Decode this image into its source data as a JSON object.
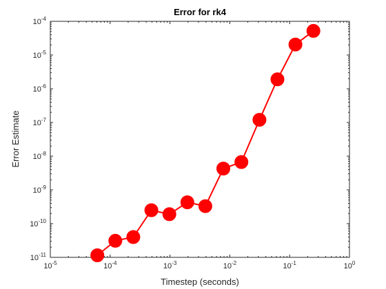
{
  "chart_data": {
    "type": "line",
    "title": "Error for rk4",
    "xlabel": "Timestep (seconds)",
    "ylabel": "Error Estimate",
    "x_scale": "log",
    "y_scale": "log",
    "xlim": [
      1e-05,
      1
    ],
    "ylim": [
      1e-11,
      0.0001
    ],
    "grid": false,
    "x_ticks": [
      {
        "value": 1e-05,
        "base": "10",
        "exp": "-5"
      },
      {
        "value": 0.0001,
        "base": "10",
        "exp": "-4"
      },
      {
        "value": 0.001,
        "base": "10",
        "exp": "-3"
      },
      {
        "value": 0.01,
        "base": "10",
        "exp": "-2"
      },
      {
        "value": 0.1,
        "base": "10",
        "exp": "-1"
      },
      {
        "value": 1,
        "base": "10",
        "exp": "0"
      }
    ],
    "y_ticks": [
      {
        "value": 1e-11,
        "base": "10",
        "exp": "-11"
      },
      {
        "value": 1e-10,
        "base": "10",
        "exp": "-10"
      },
      {
        "value": 1e-09,
        "base": "10",
        "exp": "-9"
      },
      {
        "value": 1e-08,
        "base": "10",
        "exp": "-8"
      },
      {
        "value": 1e-07,
        "base": "10",
        "exp": "-7"
      },
      {
        "value": 1e-06,
        "base": "10",
        "exp": "-6"
      },
      {
        "value": 1e-05,
        "base": "10",
        "exp": "-5"
      },
      {
        "value": 0.0001,
        "base": "10",
        "exp": "-4"
      }
    ],
    "series": [
      {
        "color": "#ff0000",
        "marker": "filled-circle",
        "x": [
          6.1e-05,
          0.000122,
          0.000244,
          0.000488,
          0.000977,
          0.00195,
          0.0039,
          0.0078,
          0.0156,
          0.03125,
          0.0625,
          0.125,
          0.25
        ],
        "y": [
          1.15e-11,
          3.1e-11,
          4e-11,
          2.5e-10,
          1.9e-10,
          4.3e-10,
          3.3e-10,
          4.3e-09,
          6.7e-09,
          1.2e-07,
          1.9e-06,
          2.05e-05,
          5.2e-05
        ]
      }
    ]
  }
}
